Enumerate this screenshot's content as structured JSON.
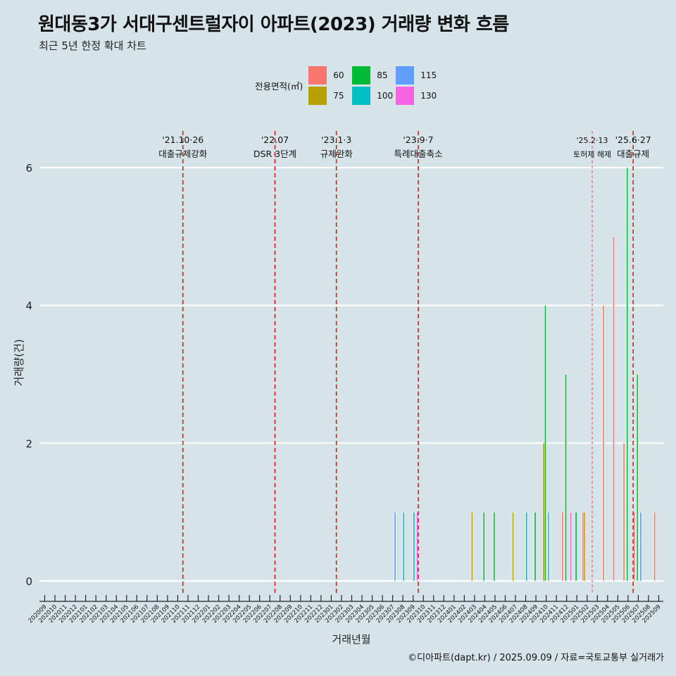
{
  "title": "원대동3가 서대구센트럴자이 아파트(2023) 거래량 변화 흐름",
  "subtitle": "최근 5년 한정 확대 차트",
  "caption": "©디아파트(dapt.kr) / 2025.09.09 / 자료=국토교통부 실거래가",
  "legend": {
    "title": "전용면적(㎡)",
    "items": [
      {
        "label": "60",
        "color": "#F8766D"
      },
      {
        "label": "75",
        "color": "#B79F00"
      },
      {
        "label": "85",
        "color": "#00BA38"
      },
      {
        "label": "100",
        "color": "#00BFC4"
      },
      {
        "label": "115",
        "color": "#619CFF"
      },
      {
        "label": "130",
        "color": "#F564E3"
      }
    ]
  },
  "chart_data": {
    "type": "bar",
    "xlabel": "거래년월",
    "ylabel": "거래량(건)",
    "ylim": [
      0,
      6
    ],
    "yticks": [
      0,
      2,
      4,
      6
    ],
    "grid": true,
    "legend_position": "top",
    "categories": [
      "202009",
      "202010",
      "202011",
      "202012",
      "202101",
      "202102",
      "202103",
      "202104",
      "202105",
      "202106",
      "202107",
      "202108",
      "202109",
      "202110",
      "202111",
      "202112",
      "202201",
      "202202",
      "202203",
      "202204",
      "202205",
      "202206",
      "202207",
      "202208",
      "202209",
      "202210",
      "202211",
      "202212",
      "202301",
      "202302",
      "202303",
      "202304",
      "202305",
      "202306",
      "202307",
      "202308",
      "202309",
      "202310",
      "202311",
      "202312",
      "202401",
      "202402",
      "202403",
      "202404",
      "202405",
      "202406",
      "202407",
      "202408",
      "202409",
      "202410",
      "202411",
      "202412",
      "202501",
      "202502",
      "202503",
      "202504",
      "202505",
      "202506",
      "202507",
      "202508",
      "202509"
    ],
    "series": [
      {
        "name": "60",
        "color": "#F8766D",
        "values": [
          0,
          0,
          0,
          0,
          0,
          0,
          0,
          0,
          0,
          0,
          0,
          0,
          0,
          0,
          0,
          0,
          0,
          0,
          0,
          0,
          0,
          0,
          0,
          0,
          0,
          0,
          0,
          0,
          0,
          0,
          0,
          0,
          0,
          0,
          0,
          0,
          0,
          0,
          0,
          0,
          0,
          0,
          0,
          0,
          0,
          0,
          0,
          0,
          0,
          0,
          0,
          1,
          0,
          1,
          0,
          4,
          5,
          2,
          1,
          0,
          1
        ]
      },
      {
        "name": "75",
        "color": "#B79F00",
        "values": [
          0,
          0,
          0,
          0,
          0,
          0,
          0,
          0,
          0,
          0,
          0,
          0,
          0,
          0,
          0,
          0,
          0,
          0,
          0,
          0,
          0,
          0,
          0,
          0,
          0,
          0,
          0,
          0,
          0,
          0,
          0,
          0,
          0,
          0,
          0,
          0,
          0,
          0,
          0,
          0,
          0,
          0,
          1,
          0,
          0,
          0,
          1,
          0,
          0,
          2,
          0,
          0,
          0,
          1,
          0,
          0,
          0,
          0,
          0,
          0,
          0
        ]
      },
      {
        "name": "85",
        "color": "#00BA38",
        "values": [
          0,
          0,
          0,
          0,
          0,
          0,
          0,
          0,
          0,
          0,
          0,
          0,
          0,
          0,
          0,
          0,
          0,
          0,
          0,
          0,
          0,
          0,
          0,
          0,
          0,
          0,
          0,
          0,
          0,
          0,
          0,
          0,
          0,
          0,
          0,
          0,
          0,
          0,
          0,
          0,
          0,
          0,
          0,
          1,
          1,
          0,
          0,
          0,
          1,
          4,
          0,
          3,
          1,
          0,
          0,
          0,
          0,
          6,
          3,
          0,
          0
        ]
      },
      {
        "name": "100",
        "color": "#00BFC4",
        "values": [
          0,
          0,
          0,
          0,
          0,
          0,
          0,
          0,
          0,
          0,
          0,
          0,
          0,
          0,
          0,
          0,
          0,
          0,
          0,
          0,
          0,
          0,
          0,
          0,
          0,
          0,
          0,
          0,
          0,
          0,
          0,
          0,
          0,
          0,
          0,
          1,
          1,
          0,
          0,
          0,
          0,
          0,
          0,
          0,
          0,
          0,
          0,
          1,
          0,
          0,
          0,
          0,
          0,
          0,
          0,
          0,
          0,
          0,
          0,
          0,
          0
        ]
      },
      {
        "name": "115",
        "color": "#619CFF",
        "values": [
          0,
          0,
          0,
          0,
          0,
          0,
          0,
          0,
          0,
          0,
          0,
          0,
          0,
          0,
          0,
          0,
          0,
          0,
          0,
          0,
          0,
          0,
          0,
          0,
          0,
          0,
          0,
          0,
          0,
          0,
          0,
          0,
          0,
          0,
          1,
          0,
          0,
          0,
          0,
          0,
          0,
          0,
          0,
          0,
          0,
          0,
          0,
          0,
          0,
          1,
          0,
          0,
          0,
          0,
          0,
          0,
          0,
          0,
          1,
          0,
          0
        ]
      },
      {
        "name": "130",
        "color": "#F564E3",
        "values": [
          0,
          0,
          0,
          0,
          0,
          0,
          0,
          0,
          0,
          0,
          0,
          0,
          0,
          0,
          0,
          0,
          0,
          0,
          0,
          0,
          0,
          0,
          0,
          0,
          0,
          0,
          0,
          0,
          0,
          0,
          0,
          0,
          0,
          0,
          0,
          0,
          1,
          0,
          0,
          0,
          0,
          0,
          0,
          0,
          0,
          0,
          0,
          0,
          0,
          0,
          0,
          1,
          0,
          0,
          0,
          0,
          0,
          0,
          0,
          0,
          0
        ]
      }
    ],
    "events": [
      {
        "date": "202110",
        "line1": "'21.10·26",
        "line2": "대출규제강화",
        "style": "major"
      },
      {
        "date": "202207",
        "line1": "'22.07",
        "line2": "DSR 3단계",
        "style": "major"
      },
      {
        "date": "202301",
        "line1": "'23.1·3",
        "line2": "규제완화",
        "style": "major"
      },
      {
        "date": "202309",
        "line1": "'23.9·7",
        "line2": "특례대출축소",
        "style": "major"
      },
      {
        "date": "202502",
        "line1": "'25.2·13",
        "line2": "토허제 해제",
        "style": "minor"
      },
      {
        "date": "202506",
        "line1": "'25.6·27",
        "line2": "대출규제",
        "style": "major"
      }
    ]
  }
}
